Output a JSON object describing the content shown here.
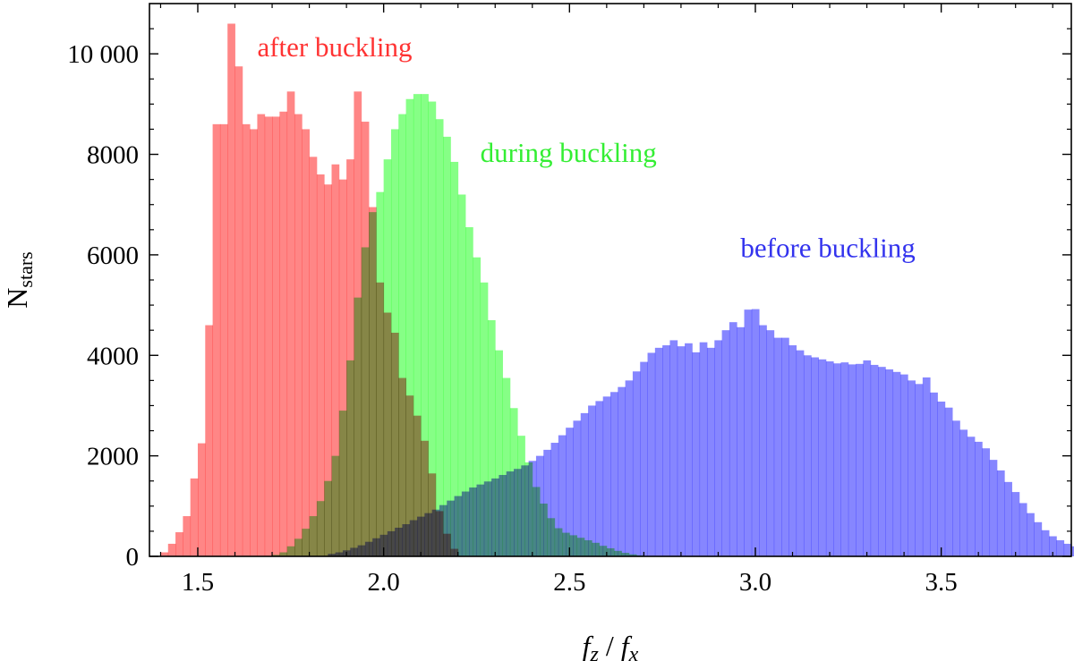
{
  "chart_data": {
    "type": "bar",
    "subtype": "overlaid-histogram",
    "xlabel": {
      "main": "f",
      "sub_num": "z",
      "sep": " / ",
      "main2": "f",
      "sub_den": "x"
    },
    "ylabel": {
      "main": "N",
      "sub": "stars"
    },
    "xlim": [
      1.37,
      3.85
    ],
    "ylim": [
      0,
      11000
    ],
    "x_ticks": [
      1.5,
      2.0,
      2.5,
      3.0,
      3.5
    ],
    "x_tick_labels": [
      "1.5",
      "2.0",
      "2.5",
      "3.0",
      "3.5"
    ],
    "y_ticks": [
      0,
      2000,
      4000,
      6000,
      8000,
      10000
    ],
    "y_tick_labels": [
      "0",
      "2000",
      "4000",
      "6000",
      "8000",
      "10 000"
    ],
    "x_minor_step": 0.1,
    "y_minor_step": 500,
    "grid": false,
    "bin_width": 0.02,
    "series": [
      {
        "name": "before buckling",
        "color": "#8080ff",
        "x_start": 1.85,
        "values": [
          50,
          80,
          120,
          170,
          220,
          290,
          360,
          430,
          500,
          570,
          640,
          720,
          790,
          860,
          930,
          1020,
          1110,
          1200,
          1290,
          1370,
          1430,
          1490,
          1550,
          1620,
          1690,
          1740,
          1810,
          1900,
          2000,
          2120,
          2260,
          2410,
          2560,
          2700,
          2850,
          3000,
          3090,
          3180,
          3270,
          3370,
          3500,
          3680,
          3870,
          4050,
          4150,
          4200,
          4300,
          4180,
          4240,
          4060,
          4260,
          4150,
          4300,
          4500,
          4660,
          4560,
          4910,
          4920,
          4600,
          4500,
          4350,
          4350,
          4200,
          4100,
          4000,
          3960,
          3920,
          3880,
          3840,
          3860,
          3820,
          3830,
          3900,
          3810,
          3770,
          3720,
          3670,
          3620,
          3500,
          3430,
          3560,
          3260,
          3080,
          2960,
          2700,
          2520,
          2380,
          2280,
          2150,
          1920,
          1710,
          1480,
          1280,
          1060,
          860,
          680,
          520,
          400,
          320,
          250,
          200,
          170,
          150,
          120,
          100,
          75,
          50,
          30
        ]
      },
      {
        "name": "during buckling",
        "color": "#80ff80",
        "x_start": 1.7,
        "values": [
          30,
          80,
          200,
          350,
          550,
          800,
          1100,
          1500,
          2000,
          2900,
          3900,
          5150,
          6150,
          6850,
          7250,
          7900,
          8500,
          8800,
          9100,
          9200,
          9200,
          9050,
          8700,
          8350,
          7850,
          7200,
          6550,
          5950,
          5450,
          4700,
          4100,
          3550,
          2950,
          2400,
          1870,
          1380,
          1050,
          760,
          560,
          470,
          420,
          370,
          320,
          270,
          210,
          160,
          110,
          70,
          40,
          20
        ]
      },
      {
        "name": "after buckling",
        "color": "#ff8080",
        "x_start": 1.4,
        "values": [
          80,
          250,
          480,
          800,
          1550,
          2250,
          4600,
          8600,
          8600,
          10600,
          9750,
          8600,
          8500,
          8800,
          8750,
          8750,
          8850,
          9250,
          8800,
          8500,
          7950,
          7600,
          7400,
          7800,
          7500,
          7900,
          9250,
          8650,
          6950,
          5450,
          4850,
          4450,
          3550,
          3200,
          2800,
          2300,
          1650,
          900,
          450,
          150
        ]
      }
    ],
    "overlap_colors": {
      "after_during": "#80c040",
      "during_before": "#40c080",
      "all_three": "#60a060"
    },
    "annotations": [
      {
        "text": "after buckling",
        "color": "#ff3333",
        "x": 1.66,
        "y": 9950
      },
      {
        "text": "during buckling",
        "color": "#33ee33",
        "x": 2.26,
        "y": 7850
      },
      {
        "text": "before buckling",
        "color": "#3333ee",
        "x": 2.96,
        "y": 5950
      }
    ]
  }
}
